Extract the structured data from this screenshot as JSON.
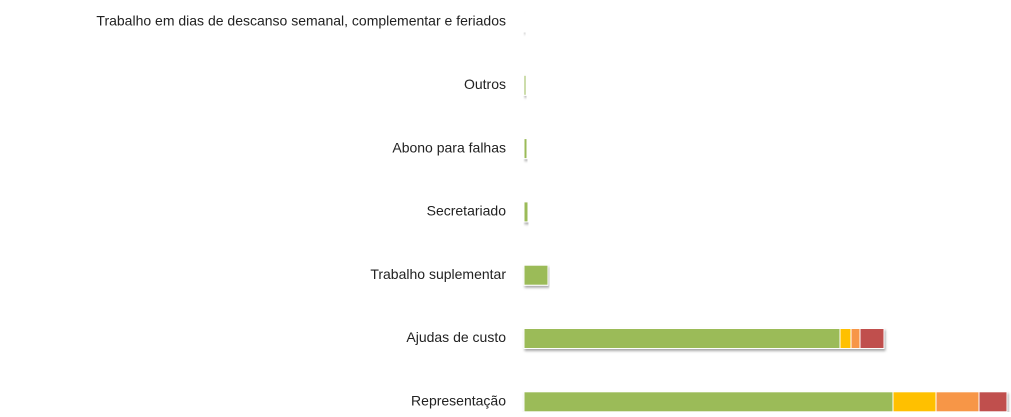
{
  "chart_data": {
    "type": "stacked-barh",
    "categories": [
      "Trabalho em dias de descanso semanal, complementar e feriados",
      "Outros",
      "Abono para falhas",
      "Secretariado",
      "Trabalho suplementar",
      "Ajudas de custo",
      "Representação"
    ],
    "series": [
      {
        "color": "#9bbb59",
        "values": [
          1,
          2,
          3,
          4,
          24,
          316,
          369
        ]
      },
      {
        "color": "#ffc000",
        "values": [
          0,
          0,
          0,
          0,
          0,
          11,
          43
        ]
      },
      {
        "color": "#f79646",
        "values": [
          0,
          0,
          0,
          0,
          0,
          9,
          43
        ]
      },
      {
        "color": "#c0504d",
        "values": [
          0,
          0,
          0,
          0,
          0,
          24,
          28
        ]
      }
    ],
    "xlim": [
      0,
      487
    ]
  }
}
